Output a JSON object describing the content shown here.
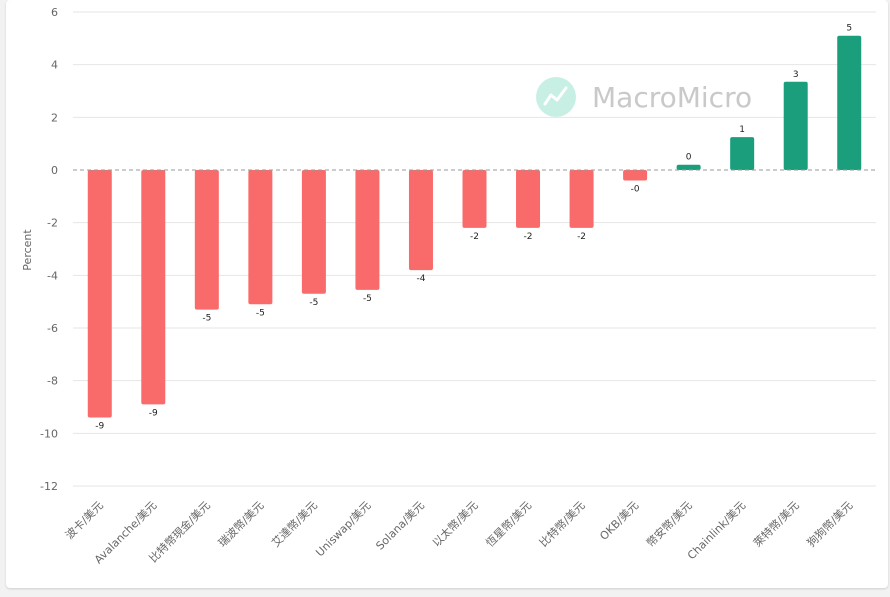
{
  "watermark": {
    "text": "MacroMicro"
  },
  "chart_data": {
    "type": "bar",
    "ylabel": "Percent",
    "ylim": [
      -12,
      6
    ],
    "yticks": [
      6,
      4,
      2,
      0,
      -2,
      -4,
      -6,
      -8,
      -10,
      -12
    ],
    "grid": true,
    "categories": [
      "波卡/美元",
      "Avalanche/美元",
      "比特幣現金/美元",
      "瑞波幣/美元",
      "艾達幣/美元",
      "Uniswap/美元",
      "Solana/美元",
      "以太幣/美元",
      "恆星幣/美元",
      "比特幣/美元",
      "OKB/美元",
      "幣安幣/美元",
      "Chainlink/美元",
      "萊特幣/美元",
      "狗狗幣/美元"
    ],
    "values": [
      -9.4,
      -8.9,
      -5.3,
      -5.1,
      -4.7,
      -4.55,
      -3.8,
      -2.2,
      -2.2,
      -2.2,
      -0.4,
      0.2,
      1.25,
      3.35,
      5.1
    ],
    "data_labels": [
      "-9",
      "-9",
      "-5",
      "-5",
      "-5",
      "-5",
      "-4",
      "-2",
      "-2",
      "-2",
      "-0",
      "0",
      "1",
      "3",
      "5"
    ],
    "colors": {
      "positive": "#1a9e7b",
      "negative": "#f96a6a"
    }
  }
}
